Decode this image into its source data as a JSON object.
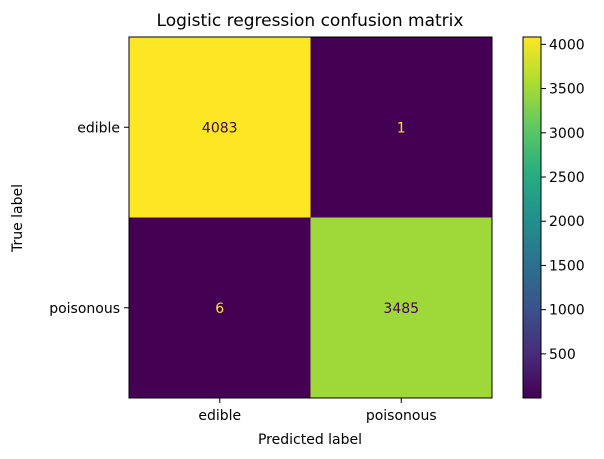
{
  "chart_data": {
    "type": "heatmap",
    "title": "Logistic regression confusion matrix",
    "xlabel": "Predicted label",
    "ylabel": "True label",
    "x_categories": [
      "edible",
      "poisonous"
    ],
    "y_categories": [
      "edible",
      "poisonous"
    ],
    "values": [
      [
        4083,
        1
      ],
      [
        6,
        3485
      ]
    ],
    "value_labels": [
      [
        "4083",
        "1"
      ],
      [
        "6",
        "3485"
      ]
    ],
    "colorscale": "viridis",
    "vmin": 1,
    "vmax": 4083,
    "colorbar_ticks": [
      500,
      1000,
      1500,
      2000,
      2500,
      3000,
      3500,
      4000
    ],
    "colorbar_tick_labels": [
      "500",
      "1000",
      "1500",
      "2000",
      "2500",
      "3000",
      "3500",
      "4000"
    ],
    "text_color_dark_cells": "#fde725",
    "text_color_light_cells": "#440154"
  }
}
